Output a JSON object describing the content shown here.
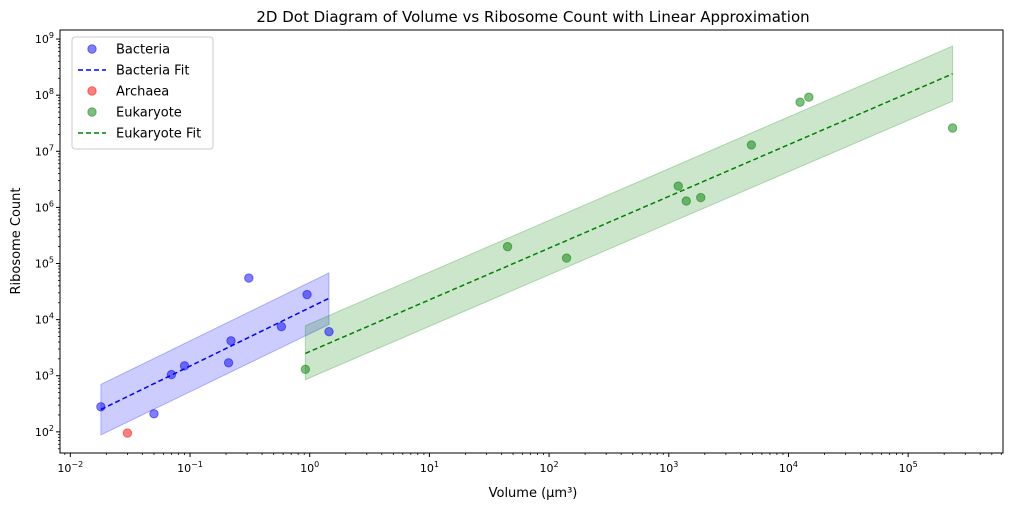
{
  "chart_data": {
    "type": "scatter",
    "title": "2D Dot Diagram of Volume vs Ribosome Count with Linear Approximation",
    "xlabel": "Volume (μm³)",
    "ylabel": "Ribosome Count",
    "xscale": "log",
    "yscale": "log",
    "xlim": [
      0.0082,
      620000
    ],
    "ylim": [
      42,
      1450000000
    ],
    "xticks": [
      {
        "value": 0.01,
        "base": "10",
        "exp": "−2"
      },
      {
        "value": 0.1,
        "base": "10",
        "exp": "−1"
      },
      {
        "value": 1,
        "base": "10",
        "exp": "0"
      },
      {
        "value": 10,
        "base": "10",
        "exp": "1"
      },
      {
        "value": 100,
        "base": "10",
        "exp": "2"
      },
      {
        "value": 1000,
        "base": "10",
        "exp": "3"
      },
      {
        "value": 10000,
        "base": "10",
        "exp": "4"
      },
      {
        "value": 100000,
        "base": "10",
        "exp": "5"
      }
    ],
    "yticks": [
      {
        "value": 100,
        "base": "10",
        "exp": "2"
      },
      {
        "value": 1000,
        "base": "10",
        "exp": "3"
      },
      {
        "value": 10000,
        "base": "10",
        "exp": "4"
      },
      {
        "value": 100000,
        "base": "10",
        "exp": "5"
      },
      {
        "value": 1000000,
        "base": "10",
        "exp": "6"
      },
      {
        "value": 10000000,
        "base": "10",
        "exp": "7"
      },
      {
        "value": 100000000,
        "base": "10",
        "exp": "8"
      },
      {
        "value": 1000000000,
        "base": "10",
        "exp": "9"
      }
    ],
    "grid": false,
    "legend_position": "top-left",
    "legend": [
      {
        "label": "Bacteria",
        "kind": "marker",
        "color": "#0000ff"
      },
      {
        "label": "Bacteria Fit",
        "kind": "dashed-line",
        "color": "#0000ff"
      },
      {
        "label": "Archaea",
        "kind": "marker",
        "color": "#ff0000"
      },
      {
        "label": "Eukaryote",
        "kind": "marker",
        "color": "#008000"
      },
      {
        "label": "Eukaryote Fit",
        "kind": "dashed-line",
        "color": "#008000"
      }
    ],
    "series": [
      {
        "name": "Bacteria",
        "kind": "scatter",
        "color": "#0000ff",
        "points": [
          {
            "x": 0.018,
            "y": 280
          },
          {
            "x": 0.05,
            "y": 210
          },
          {
            "x": 0.07,
            "y": 1050
          },
          {
            "x": 0.09,
            "y": 1500
          },
          {
            "x": 0.21,
            "y": 1700
          },
          {
            "x": 0.22,
            "y": 4200
          },
          {
            "x": 0.31,
            "y": 55000
          },
          {
            "x": 0.58,
            "y": 7500
          },
          {
            "x": 0.95,
            "y": 28000
          },
          {
            "x": 1.45,
            "y": 6100
          }
        ]
      },
      {
        "name": "Bacteria Fit",
        "kind": "fit",
        "color": "#0000ff",
        "x_range": [
          0.018,
          1.45
        ],
        "y_range": [
          250,
          24000
        ],
        "band_lower": [
          88,
          8200
        ],
        "band_upper": [
          700,
          68000
        ]
      },
      {
        "name": "Archaea",
        "kind": "scatter",
        "color": "#ff0000",
        "points": [
          {
            "x": 0.03,
            "y": 95
          }
        ]
      },
      {
        "name": "Eukaryote",
        "kind": "scatter",
        "color": "#008000",
        "points": [
          {
            "x": 0.92,
            "y": 1300
          },
          {
            "x": 45,
            "y": 200000
          },
          {
            "x": 140,
            "y": 125000
          },
          {
            "x": 1200,
            "y": 2400000
          },
          {
            "x": 1400,
            "y": 1300000
          },
          {
            "x": 1850,
            "y": 1500000
          },
          {
            "x": 4900,
            "y": 13000000
          },
          {
            "x": 12500,
            "y": 75000000
          },
          {
            "x": 14800,
            "y": 92000000
          },
          {
            "x": 235000,
            "y": 26000000
          }
        ]
      },
      {
        "name": "Eukaryote Fit",
        "kind": "fit",
        "color": "#008000",
        "x_range": [
          0.92,
          235000
        ],
        "y_range": [
          2500,
          240000000
        ],
        "band_lower": [
          850,
          78000000
        ],
        "band_upper": [
          7800,
          750000000
        ]
      }
    ]
  }
}
